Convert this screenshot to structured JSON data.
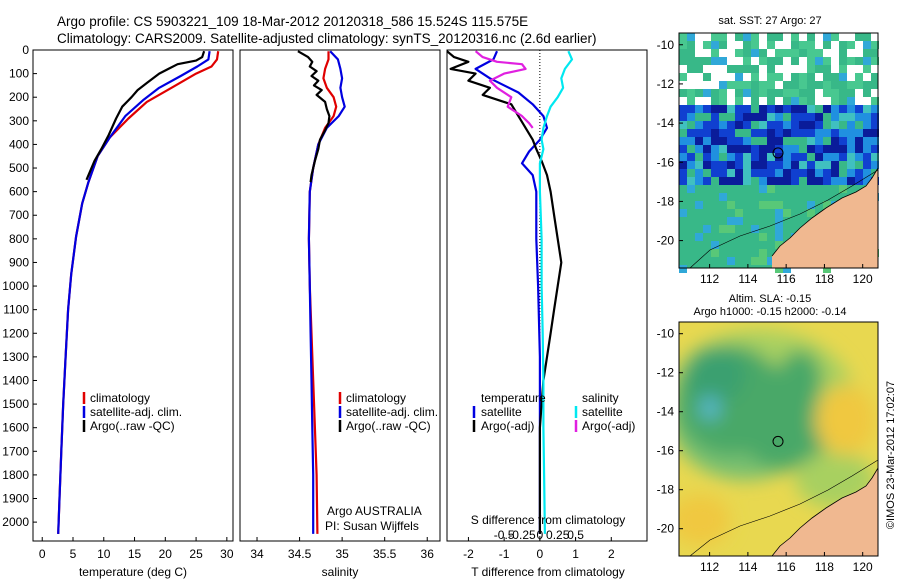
{
  "header": {
    "line1": "Argo profile: CS 5903221_109 18-Mar-2012 20120318_586 15.524S 115.575E",
    "line2": "Climatology: CARS2009. Satellite-adjusted climatology: synTS_20120316.nc (2.6d earlier)"
  },
  "colors": {
    "climatology": "#e00000",
    "satellite": "#0000e0",
    "argo": "#000000",
    "salinity_satellite": "#00e8f0",
    "salinity_argo": "#e020e0"
  },
  "chart_data": [
    {
      "id": "temperature",
      "type": "line",
      "xlabel": "temperature (deg C)",
      "ylabel": "",
      "xlim": [
        -1.5,
        31
      ],
      "ylim": [
        2080,
        0
      ],
      "xticks": [
        0,
        5,
        10,
        15,
        20,
        25,
        30
      ],
      "yticks": [
        0,
        100,
        200,
        300,
        400,
        500,
        600,
        700,
        800,
        900,
        1000,
        1100,
        1200,
        1300,
        1400,
        1500,
        1600,
        1700,
        1800,
        1900,
        2000
      ],
      "legend": {
        "position": "lower-center",
        "entries": [
          "climatology",
          "satellite-adj. clim.",
          "Argo(..raw -QC)"
        ]
      },
      "series": [
        {
          "name": "climatology",
          "color": "red",
          "points": [
            [
              28.6,
              5
            ],
            [
              28.4,
              40
            ],
            [
              27.5,
              70
            ],
            [
              25,
              100
            ],
            [
              21,
              160
            ],
            [
              17,
              220
            ],
            [
              14,
              290
            ],
            [
              11,
              370
            ],
            [
              9,
              450
            ],
            [
              7.5,
              560
            ],
            [
              6.5,
              650
            ],
            [
              5.5,
              790
            ],
            [
              4.7,
              950
            ],
            [
              4.2,
              1100
            ],
            [
              3.8,
              1300
            ],
            [
              3.4,
              1500
            ],
            [
              3.1,
              1700
            ],
            [
              2.8,
              1900
            ],
            [
              2.6,
              2050
            ]
          ]
        },
        {
          "name": "satellite-adj. clim.",
          "color": "blue",
          "points": [
            [
              27.2,
              5
            ],
            [
              27,
              40
            ],
            [
              25.2,
              70
            ],
            [
              22.5,
              110
            ],
            [
              19,
              160
            ],
            [
              16.5,
              210
            ],
            [
              13.5,
              280
            ],
            [
              11,
              370
            ],
            [
              9,
              450
            ],
            [
              7.5,
              560
            ],
            [
              6.5,
              650
            ],
            [
              5.5,
              790
            ],
            [
              4.7,
              950
            ],
            [
              4.2,
              1100
            ],
            [
              3.8,
              1300
            ],
            [
              3.4,
              1500
            ],
            [
              3.1,
              1700
            ],
            [
              2.8,
              1900
            ],
            [
              2.6,
              2050
            ]
          ]
        },
        {
          "name": "Argo(..raw -QC)",
          "color": "black",
          "points": [
            [
              26.3,
              5
            ],
            [
              26,
              30
            ],
            [
              25,
              45
            ],
            [
              22,
              60
            ],
            [
              20.5,
              80
            ],
            [
              19,
              100
            ],
            [
              17,
              140
            ],
            [
              15.5,
              170
            ],
            [
              14.5,
              200
            ],
            [
              13,
              240
            ],
            [
              12,
              290
            ],
            [
              10.8,
              360
            ],
            [
              9.6,
              420
            ],
            [
              8.5,
              470
            ],
            [
              7.2,
              550
            ]
          ]
        }
      ]
    },
    {
      "id": "salinity",
      "type": "line",
      "xlabel": "salinity",
      "ylabel": "",
      "xlim": [
        33.8,
        36.15
      ],
      "ylim": [
        2080,
        0
      ],
      "xticks": [
        34,
        34.5,
        35,
        35.5,
        36
      ],
      "legend": {
        "position": "lower-center",
        "entries": [
          "climatology",
          "satellite-adj. clim.",
          "Argo(..raw -QC)"
        ]
      },
      "annotations": [
        "Argo AUSTRALIA",
        "PI: Susan Wijffels"
      ],
      "series": [
        {
          "name": "climatology",
          "color": "red",
          "points": [
            [
              34.84,
              5
            ],
            [
              34.84,
              40
            ],
            [
              34.8,
              80
            ],
            [
              34.78,
              120
            ],
            [
              34.82,
              160
            ],
            [
              34.9,
              200
            ],
            [
              34.93,
              240
            ],
            [
              34.9,
              280
            ],
            [
              34.8,
              330
            ],
            [
              34.72,
              400
            ],
            [
              34.66,
              500
            ],
            [
              34.62,
              600
            ],
            [
              34.61,
              800
            ],
            [
              34.62,
              1000
            ],
            [
              34.64,
              1200
            ],
            [
              34.66,
              1400
            ],
            [
              34.68,
              1600
            ],
            [
              34.7,
              1800
            ],
            [
              34.71,
              2050
            ]
          ]
        },
        {
          "name": "satellite-adj. clim.",
          "color": "blue",
          "points": [
            [
              34.86,
              5
            ],
            [
              34.95,
              40
            ],
            [
              34.98,
              80
            ],
            [
              35,
              120
            ],
            [
              34.98,
              160
            ],
            [
              35.0,
              200
            ],
            [
              35.03,
              240
            ],
            [
              34.96,
              280
            ],
            [
              34.82,
              330
            ],
            [
              34.72,
              400
            ],
            [
              34.66,
              500
            ],
            [
              34.62,
              600
            ],
            [
              34.61,
              800
            ],
            [
              34.62,
              1000
            ],
            [
              34.63,
              1200
            ],
            [
              34.64,
              1400
            ],
            [
              34.65,
              1600
            ],
            [
              34.66,
              1800
            ],
            [
              34.66,
              2050
            ]
          ]
        },
        {
          "name": "Argo(..raw -QC)",
          "color": "black",
          "points": [
            [
              34.48,
              5
            ],
            [
              34.6,
              30
            ],
            [
              34.65,
              50
            ],
            [
              34.62,
              70
            ],
            [
              34.7,
              90
            ],
            [
              34.64,
              110
            ],
            [
              34.72,
              130
            ],
            [
              34.67,
              150
            ],
            [
              34.76,
              170
            ],
            [
              34.7,
              190
            ],
            [
              34.8,
              220
            ],
            [
              34.82,
              250
            ],
            [
              34.85,
              280
            ],
            [
              34.84,
              310
            ],
            [
              34.8,
              340
            ],
            [
              34.74,
              380
            ],
            [
              34.72,
              420
            ],
            [
              34.68,
              470
            ],
            [
              34.64,
              530
            ],
            [
              34.63,
              560
            ]
          ]
        }
      ]
    },
    {
      "id": "difference",
      "type": "line",
      "xlabel": "T difference from climatology",
      "xlabel_top": "S difference from climatology",
      "xlim": [
        -2.6,
        3
      ],
      "ylim": [
        2080,
        0
      ],
      "xticks": [
        -2,
        -1,
        0,
        1,
        2
      ],
      "xticks_top_labels": [
        "-0.5",
        "-0.25",
        "0",
        "0.25",
        "0.5"
      ],
      "legend": {
        "position": "lower-center",
        "headers": [
          "temperature",
          "salinity"
        ],
        "entries": [
          "satellite",
          "Argo(-adj)",
          "satellite",
          "Argo(-adj)"
        ]
      },
      "series": [
        {
          "name": "temperature satellite",
          "color": "blue",
          "points": [
            [
              -1.2,
              5
            ],
            [
              -1.3,
              40
            ],
            [
              -1.8,
              80
            ],
            [
              -1.4,
              120
            ],
            [
              -0.6,
              180
            ],
            [
              -0.2,
              230
            ],
            [
              0.1,
              280
            ],
            [
              0.2,
              330
            ],
            [
              0,
              380
            ],
            [
              -0.3,
              430
            ],
            [
              -0.5,
              480
            ],
            [
              -0.2,
              530
            ],
            [
              -0.1,
              600
            ],
            [
              -0.1,
              800
            ],
            [
              -0.05,
              1000
            ],
            [
              0,
              1300
            ],
            [
              0,
              1600
            ],
            [
              0,
              1900
            ],
            [
              0,
              2050
            ]
          ]
        },
        {
          "name": "temperature Argo(-adj)",
          "color": "black",
          "points": [
            [
              -2.6,
              5
            ],
            [
              -2.4,
              30
            ],
            [
              -2.0,
              50
            ],
            [
              -2.5,
              80
            ],
            [
              -1.8,
              100
            ],
            [
              -2.0,
              130
            ],
            [
              -1.4,
              160
            ],
            [
              -1.6,
              190
            ],
            [
              -0.8,
              230
            ],
            [
              -0.6,
              280
            ],
            [
              -0.4,
              330
            ],
            [
              -0.2,
              380
            ],
            [
              -0.1,
              420
            ],
            [
              0.05,
              470
            ],
            [
              0.2,
              530
            ],
            [
              0.3,
              600
            ],
            [
              0.4,
              700
            ],
            [
              0.5,
              800
            ],
            [
              0.6,
              900
            ],
            [
              0.5,
              1000
            ],
            [
              0.4,
              1100
            ],
            [
              0.3,
              1200
            ],
            [
              0.2,
              1300
            ],
            [
              0.1,
              1400
            ],
            [
              0.05,
              1500
            ],
            [
              0,
              1600
            ],
            [
              0,
              1900
            ],
            [
              0,
              2050
            ]
          ]
        },
        {
          "name": "salinity satellite",
          "color": "cyan",
          "points": [
            [
              0.8,
              5
            ],
            [
              0.9,
              40
            ],
            [
              0.7,
              80
            ],
            [
              0.6,
              120
            ],
            [
              0.65,
              160
            ],
            [
              0.5,
              200
            ],
            [
              0.3,
              240
            ],
            [
              0.2,
              280
            ],
            [
              0.1,
              330
            ],
            [
              0.05,
              380
            ],
            [
              0.1,
              420
            ],
            [
              0,
              480
            ],
            [
              0,
              600
            ],
            [
              0.05,
              800
            ],
            [
              0.05,
              1000
            ],
            [
              0.08,
              1200
            ],
            [
              0.1,
              1400
            ],
            [
              0.1,
              1600
            ],
            [
              0.12,
              1800
            ],
            [
              0.14,
              2050
            ]
          ]
        },
        {
          "name": "salinity Argo(-adj)",
          "color": "magenta",
          "points": [
            [
              -1.8,
              5
            ],
            [
              -1.6,
              30
            ],
            [
              -1.2,
              50
            ],
            [
              -0.5,
              60
            ],
            [
              -0.4,
              80
            ],
            [
              -1.0,
              100
            ],
            [
              -1.4,
              130
            ],
            [
              -1.2,
              160
            ],
            [
              -0.8,
              200
            ],
            [
              -0.9,
              240
            ],
            [
              -0.5,
              280
            ],
            [
              -0.3,
              310
            ],
            [
              -0.2,
              330
            ]
          ]
        }
      ]
    }
  ],
  "maps": {
    "sst": {
      "title": "sat. SST: 27 Argo: 27",
      "xticks": [
        "112",
        "114",
        "116",
        "118",
        "120"
      ],
      "yticks": [
        "-10",
        "-12",
        "-14",
        "-16",
        "-18",
        "-20"
      ],
      "argo_lon": 115.575,
      "argo_lat": -15.524
    },
    "sla": {
      "title1": "Altim. SLA: -0.15",
      "title2": "Argo h1000: -0.15 h2000: -0.14",
      "xticks": [
        "112",
        "114",
        "116",
        "118",
        "120"
      ],
      "yticks": [
        "-10",
        "-12",
        "-14",
        "-16",
        "-18",
        "-20"
      ],
      "argo_lon": 115.575,
      "argo_lat": -15.524
    }
  },
  "footer": {
    "stamp": "©IMOS 23-Mar-2012 17:02:07"
  }
}
